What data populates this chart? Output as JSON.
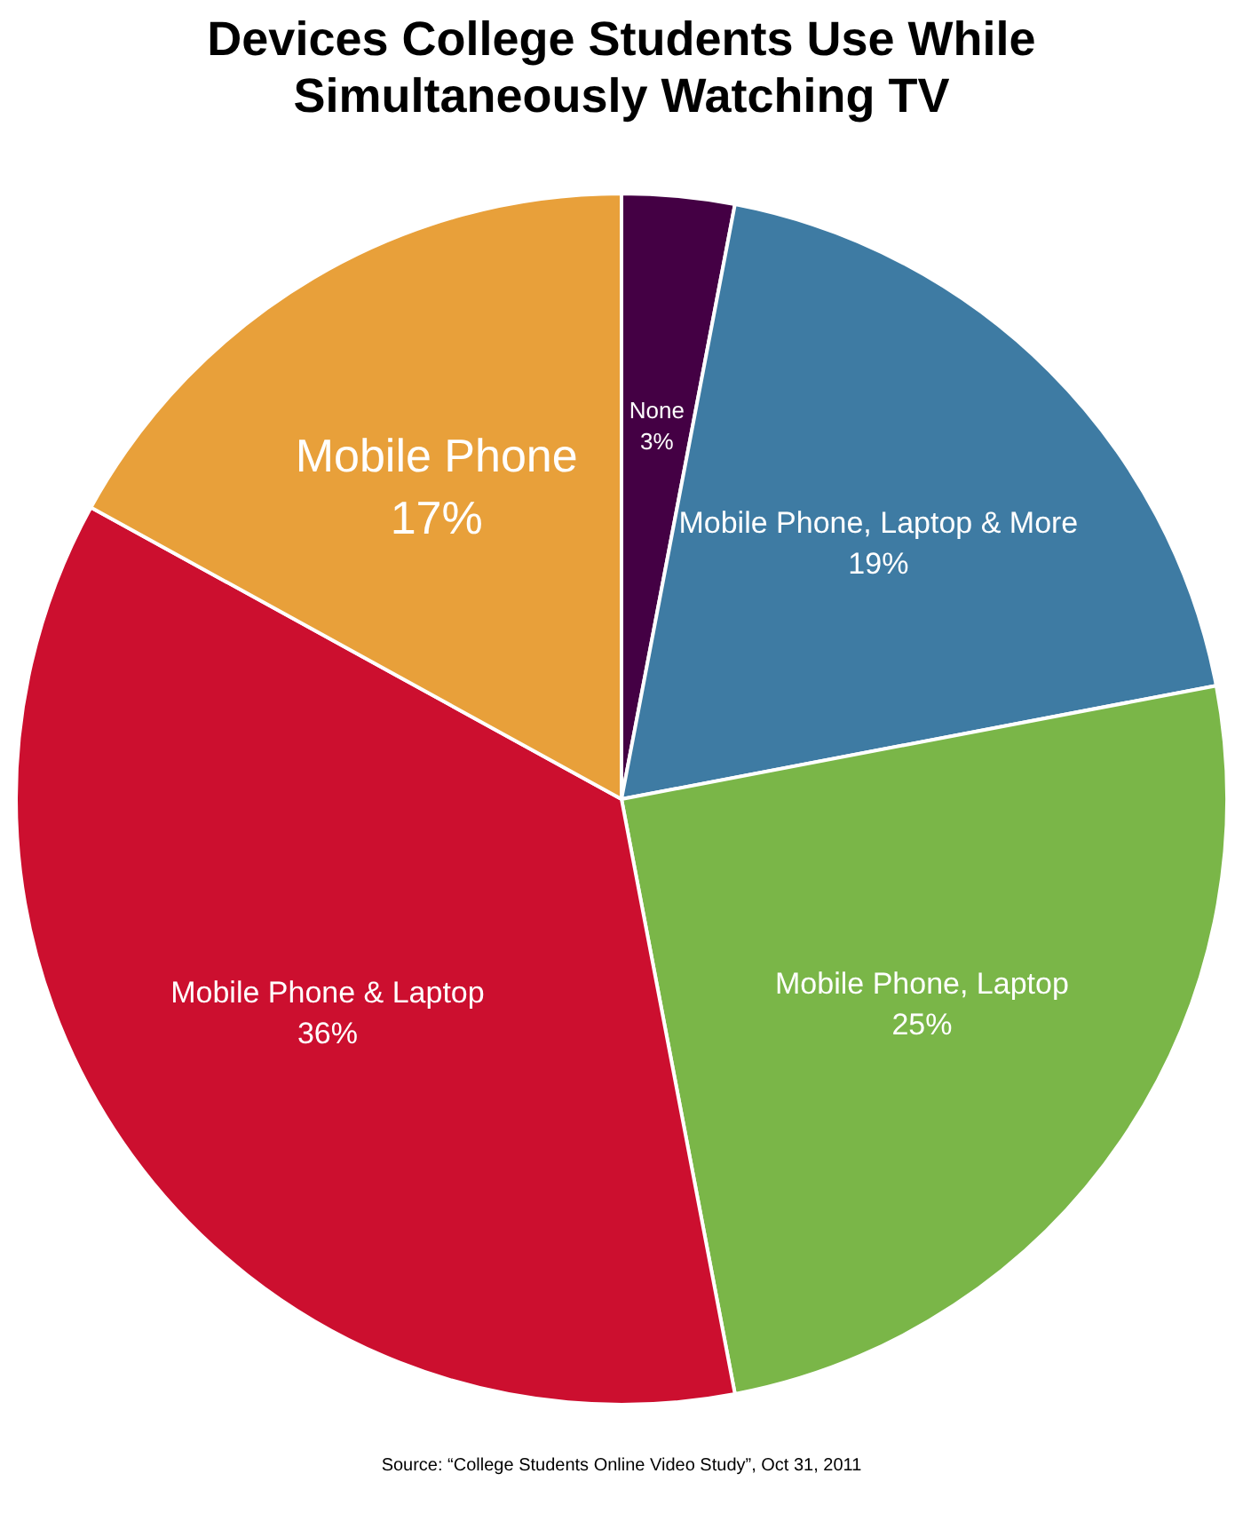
{
  "chart_data": {
    "type": "pie",
    "title": "Devices College Students Use While Simultaneously Watching TV",
    "categories": [
      "None",
      "Mobile Phone, Laptop & More",
      "Mobile Phone, Laptop",
      "Mobile Phone & Laptop",
      "Mobile Phone"
    ],
    "values": [
      3,
      19,
      25,
      36,
      17
    ],
    "colors": [
      "#440044",
      "#3e7ba3",
      "#7ab648",
      "#cc0f2f",
      "#e8a03a"
    ],
    "value_labels": [
      "3%",
      "19%",
      "25%",
      "36%",
      "17%"
    ],
    "legend": false,
    "annotations": [
      "Source: “College Students Online Video Study”, Oct 31, 2011"
    ]
  }
}
